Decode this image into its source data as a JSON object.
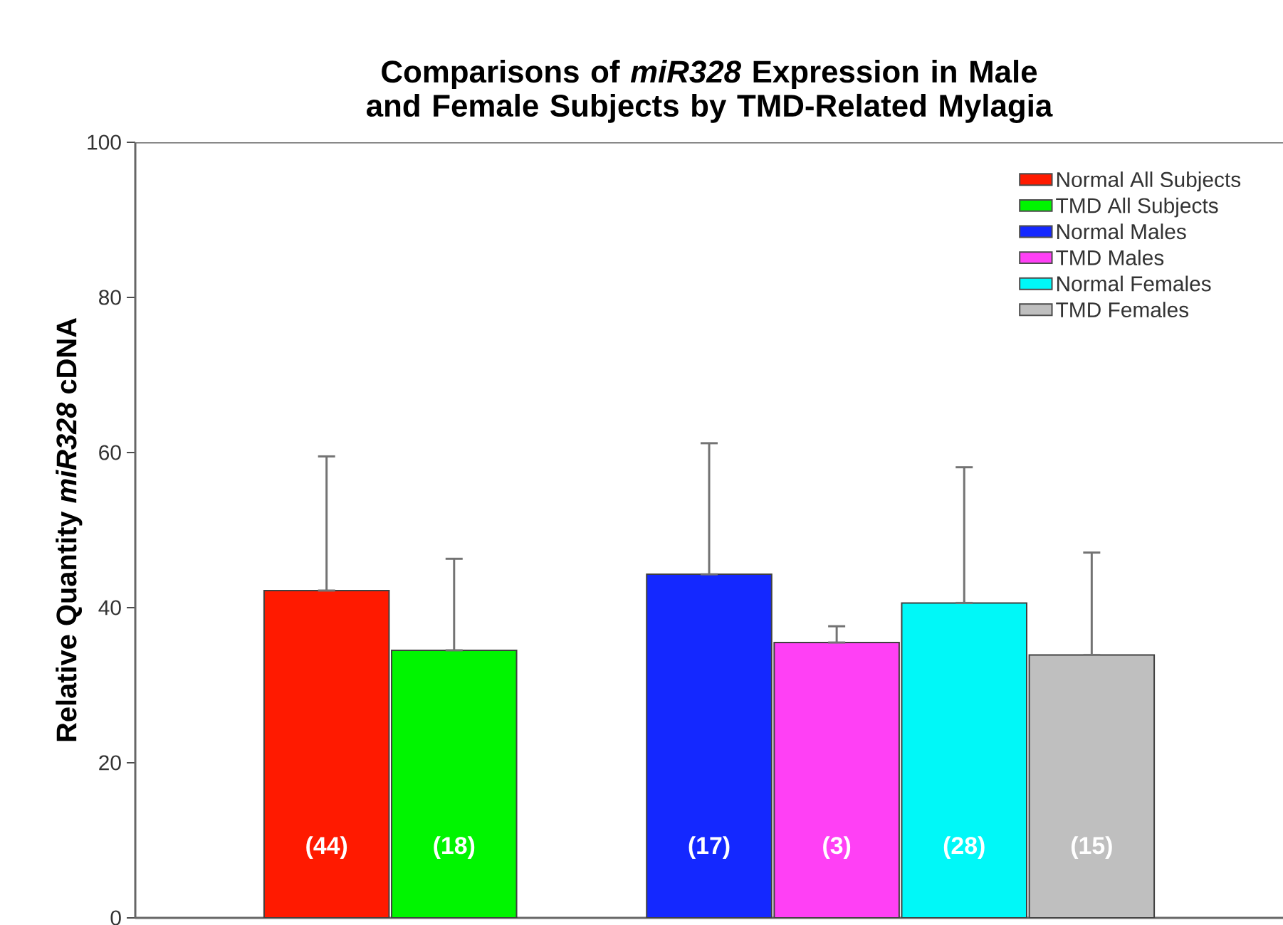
{
  "chart_data": {
    "type": "bar",
    "title": "Comparisons of *miR328* Expression in Male and Female Subjects by TMD-Related Mylagia",
    "ylabel": "Relative Quantity *miR328* cDNA",
    "categories": [
      null,
      null,
      null,
      null,
      null,
      null,
      null,
      null,
      null
    ],
    "series": [
      {
        "name": "Normal All Subjects",
        "color": "#ff1a00",
        "values": [
          null,
          42.2,
          null,
          null,
          null,
          null,
          null,
          null,
          null
        ],
        "errors": [
          null,
          [
            42.2,
            59.5
          ],
          null,
          null,
          null,
          null,
          null,
          null,
          null
        ]
      },
      {
        "name": "TMD All Subjects",
        "color": "#00f500",
        "values": [
          null,
          null,
          34.5,
          null,
          null,
          null,
          null,
          null,
          null
        ],
        "errors": [
          null,
          null,
          [
            34.5,
            46.3
          ],
          null,
          null,
          null,
          null,
          null,
          null
        ]
      },
      {
        "name": "Normal Males",
        "color": "#1428ff",
        "values": [
          null,
          null,
          null,
          null,
          44.3,
          null,
          null,
          null,
          null
        ],
        "errors": [
          null,
          null,
          null,
          null,
          [
            44.3,
            61.2
          ],
          null,
          null,
          null,
          null
        ]
      },
      {
        "name": "TMD Males",
        "color": "#ff40f5",
        "values": [
          null,
          null,
          null,
          null,
          null,
          35.5,
          null,
          null,
          null
        ],
        "errors": [
          null,
          null,
          null,
          null,
          null,
          [
            35.5,
            37.6
          ],
          null,
          null,
          null
        ]
      },
      {
        "name": "Normal Females",
        "color": "#00f8f8",
        "values": [
          null,
          null,
          null,
          null,
          null,
          null,
          40.6,
          null,
          null
        ],
        "errors": [
          null,
          null,
          null,
          null,
          null,
          null,
          [
            40.6,
            58.1
          ],
          null,
          null
        ]
      },
      {
        "name": "TMD Females",
        "color": "#bfbfbf",
        "values": [
          null,
          null,
          null,
          null,
          null,
          null,
          null,
          33.9,
          null
        ],
        "errors": [
          null,
          null,
          null,
          null,
          null,
          null,
          null,
          [
            33.9,
            47.1
          ],
          null
        ]
      }
    ],
    "annotations": [
      "(44)",
      "(18)",
      "(17)",
      "(3)",
      "(28)",
      "(15)"
    ],
    "ylim": [
      0,
      100
    ],
    "yticks": [
      0,
      20,
      40,
      60,
      80,
      100
    ],
    "tick_labels": "y",
    "legend": "top right",
    "grid": false
  }
}
